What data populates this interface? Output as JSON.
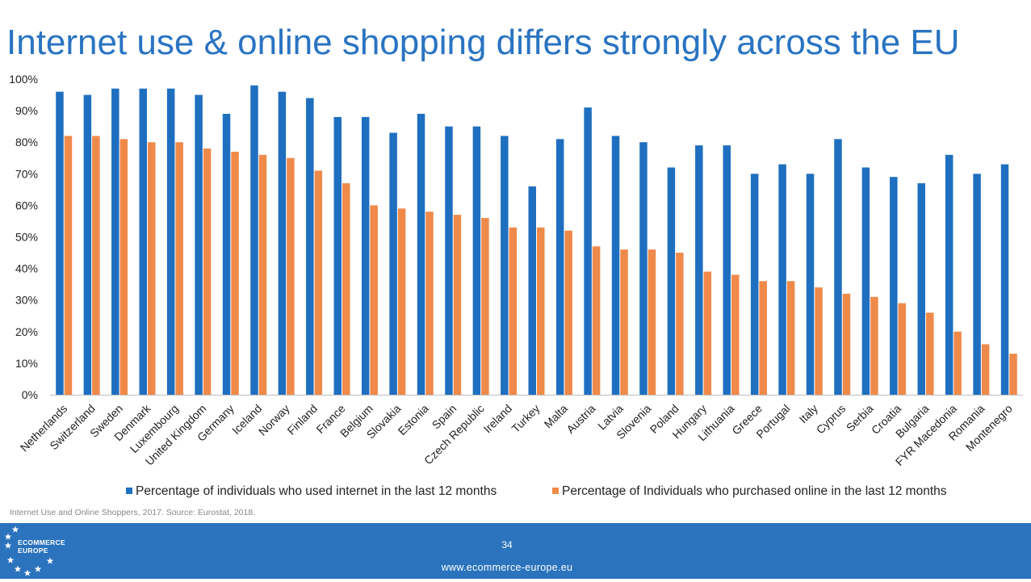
{
  "title": "Internet use & online shopping differs strongly across the EU",
  "colors": {
    "internet": "#1f6fc0",
    "purchase": "#ef8a4a",
    "title": "#2a74c2",
    "footer": "#2b73bd",
    "axis": "#bfbfbf"
  },
  "chart_data": {
    "type": "bar",
    "categories": [
      "Netherlands",
      "Switzerland",
      "Sweden",
      "Denmark",
      "Luxembourg",
      "United Kingdom",
      "Germany",
      "Iceland",
      "Norway",
      "Finland",
      "France",
      "Belgium",
      "Slovakia",
      "Estonia",
      "Spain",
      "Czech Republic",
      "Ireland",
      "Turkey",
      "Malta",
      "Austria",
      "Latvia",
      "Slovenia",
      "Poland",
      "Hungary",
      "Lithuania",
      "Greece",
      "Portugal",
      "Italy",
      "Cyprus",
      "Serbia",
      "Croatia",
      "Bulgaria",
      "FYR Macedonia",
      "Romania",
      "Montenegro"
    ],
    "series": [
      {
        "name": "Percentage of individuals who used internet in the last 12 months",
        "values": [
          96,
          95,
          97,
          97,
          97,
          95,
          89,
          98,
          96,
          94,
          88,
          88,
          83,
          89,
          85,
          85,
          82,
          66,
          81,
          91,
          82,
          80,
          72,
          79,
          79,
          70,
          73,
          70,
          81,
          72,
          69,
          67,
          76,
          70,
          73
        ]
      },
      {
        "name": "Percentage of Individuals who purchased online in the last 12 months",
        "values": [
          82,
          82,
          81,
          80,
          80,
          78,
          77,
          76,
          75,
          71,
          67,
          60,
          59,
          58,
          57,
          56,
          53,
          53,
          52,
          47,
          46,
          46,
          45,
          39,
          38,
          36,
          36,
          34,
          32,
          31,
          29,
          26,
          20,
          16,
          13
        ]
      }
    ],
    "ylim": [
      0,
      100
    ],
    "yticks": [
      "0%",
      "10%",
      "20%",
      "30%",
      "40%",
      "50%",
      "60%",
      "70%",
      "80%",
      "90%",
      "100%"
    ],
    "legend_position": "bottom",
    "grid": false
  },
  "source": "Internet Use and Online Shoppers, 2017. Source: Eurostat, 2018.",
  "footer": {
    "page_number": "34",
    "url": "www.ecommerce-europe.eu",
    "logo_line1": "ECOMMERCE",
    "logo_line2": "EUROPE"
  }
}
